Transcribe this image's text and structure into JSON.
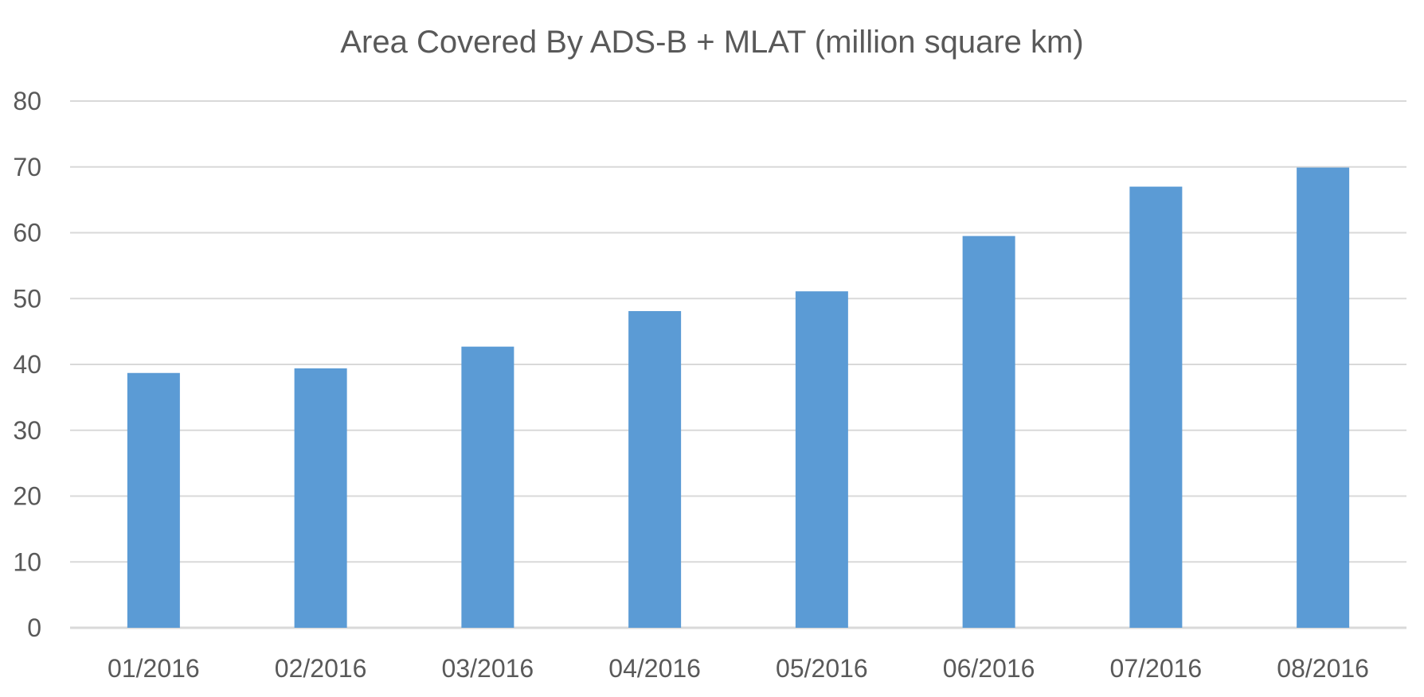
{
  "chart_data": {
    "type": "bar",
    "title": "Area Covered By ADS-B + MLAT (million square km)",
    "xlabel": "",
    "ylabel": "",
    "categories": [
      "01/2016",
      "02/2016",
      "03/2016",
      "04/2016",
      "05/2016",
      "06/2016",
      "07/2016",
      "08/2016"
    ],
    "values": [
      38.7,
      39.4,
      42.7,
      48.1,
      51.1,
      59.5,
      67.0,
      69.9
    ],
    "ylim": [
      0,
      80
    ],
    "yticks": [
      "0",
      "10",
      "20",
      "30",
      "40",
      "50",
      "60",
      "70",
      "80"
    ],
    "grid": true,
    "legend": "none",
    "colors": {
      "bar": "#5b9bd5",
      "grid": "#d9d9d9",
      "text": "#595959"
    }
  }
}
